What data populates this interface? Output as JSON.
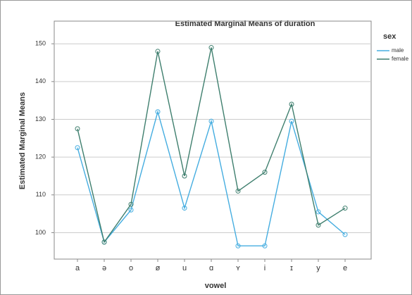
{
  "chart_data": {
    "type": "line",
    "title": "Estimated Marginal Means of duration",
    "x_label": "vowel",
    "y_label": "Estimated Marginal Means",
    "legend_title": "sex",
    "categories": [
      "a",
      "ə",
      "o",
      "ø",
      "u",
      "ɑ",
      "ʏ",
      "i",
      "ɪ",
      "y",
      "e"
    ],
    "series": [
      {
        "name": "male",
        "color": "#45ade0",
        "values": [
          122.5,
          97.5,
          106,
          132,
          106.5,
          129.5,
          96.5,
          96.5,
          129.5,
          105.5,
          99.5
        ]
      },
      {
        "name": "female",
        "color": "#3f7f6e",
        "values": [
          127.5,
          97.5,
          107.5,
          148,
          115,
          149,
          111,
          116,
          134,
          102,
          106.5
        ]
      }
    ],
    "ylim": [
      93,
      156
    ],
    "yticks": [
      100,
      110,
      120,
      130,
      140,
      150
    ],
    "grid": true,
    "legend": "right"
  }
}
